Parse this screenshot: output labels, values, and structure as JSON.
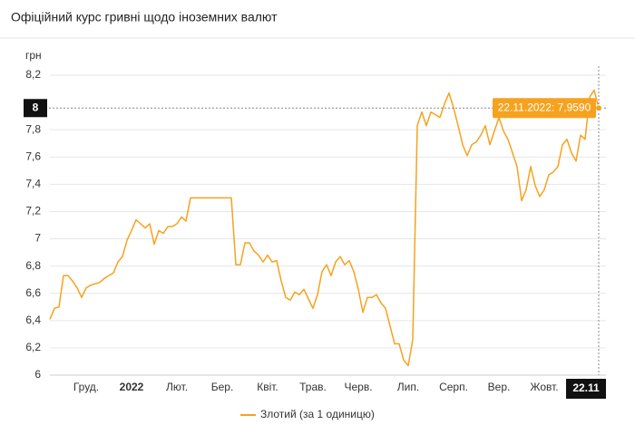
{
  "chart_data": {
    "type": "line",
    "title": "Офіційний курс гривні щодо іноземних валют",
    "y_label": "грн",
    "categories": [
      null,
      null,
      null,
      null,
      null,
      null,
      null,
      null,
      "Груд.",
      null,
      null,
      null,
      null,
      null,
      null,
      null,
      null,
      null,
      "2022",
      null,
      null,
      null,
      null,
      null,
      null,
      null,
      null,
      null,
      "Лют.",
      null,
      null,
      null,
      null,
      null,
      null,
      null,
      null,
      null,
      "Бер.",
      null,
      null,
      null,
      null,
      null,
      null,
      null,
      null,
      null,
      "Квіт.",
      null,
      null,
      null,
      null,
      null,
      null,
      null,
      null,
      null,
      "Трав.",
      null,
      null,
      null,
      null,
      null,
      null,
      null,
      null,
      null,
      "Черв.",
      null,
      null,
      null,
      null,
      null,
      null,
      null,
      null,
      null,
      null,
      "Лип.",
      null,
      null,
      null,
      null,
      null,
      null,
      null,
      null,
      null,
      "Серп.",
      null,
      null,
      null,
      null,
      null,
      null,
      null,
      null,
      null,
      "Вер.",
      null,
      null,
      null,
      null,
      null,
      null,
      null,
      null,
      null,
      "Жовт.",
      null,
      null,
      null,
      null,
      null,
      null,
      null,
      null,
      null,
      null,
      null,
      null
    ],
    "series": [
      {
        "name": "Злотий (за 1 одиницю)",
        "color": "#f6a21e",
        "values": [
          6.41,
          6.49,
          6.5,
          6.73,
          6.73,
          6.69,
          6.64,
          6.57,
          6.64,
          6.66,
          6.67,
          6.68,
          6.71,
          6.73,
          6.75,
          6.83,
          6.87,
          6.99,
          7.06,
          7.14,
          7.11,
          7.08,
          7.11,
          6.96,
          7.06,
          7.04,
          7.09,
          7.09,
          7.11,
          7.16,
          7.13,
          7.3,
          7.3,
          7.3,
          7.3,
          7.3,
          7.3,
          7.3,
          7.3,
          7.3,
          7.3,
          6.81,
          6.81,
          6.97,
          6.97,
          6.91,
          6.88,
          6.83,
          6.88,
          6.83,
          6.84,
          6.69,
          6.57,
          6.55,
          6.61,
          6.59,
          6.63,
          6.56,
          6.49,
          6.59,
          6.76,
          6.81,
          6.73,
          6.83,
          6.87,
          6.81,
          6.84,
          6.76,
          6.63,
          6.46,
          6.57,
          6.57,
          6.59,
          6.53,
          6.49,
          6.36,
          6.23,
          6.23,
          6.11,
          6.07,
          6.26,
          7.83,
          7.93,
          7.83,
          7.93,
          7.91,
          7.89,
          7.99,
          8.07,
          7.96,
          7.83,
          7.69,
          7.61,
          7.69,
          7.71,
          7.76,
          7.83,
          7.69,
          7.79,
          7.89,
          7.79,
          7.73,
          7.63,
          7.53,
          7.28,
          7.36,
          7.53,
          7.39,
          7.31,
          7.36,
          7.47,
          7.49,
          7.53,
          7.69,
          7.73,
          7.63,
          7.57,
          7.76,
          7.73,
          8.04,
          8.09,
          7.959
        ]
      }
    ],
    "ylim": [
      6,
      8.2
    ],
    "yticks": [
      6,
      {
        "value": 6.2,
        "label": "6,2"
      },
      {
        "value": 6.4,
        "label": "6,4"
      },
      {
        "value": 6.6,
        "label": "6,6"
      },
      {
        "value": 6.8,
        "label": "6,8"
      },
      7,
      {
        "value": 7.2,
        "label": "7,2"
      },
      {
        "value": 7.4,
        "label": "7,4"
      },
      {
        "value": 7.6,
        "label": "7,6"
      },
      {
        "value": 7.8,
        "label": "7,8"
      },
      {
        "value": 8.2,
        "label": "8,2"
      }
    ],
    "grid": true,
    "crosshair": {
      "value": 7.959,
      "y_label": "8",
      "x_label": "22.11",
      "tooltip": "22.11.2022: 7,9590"
    }
  }
}
